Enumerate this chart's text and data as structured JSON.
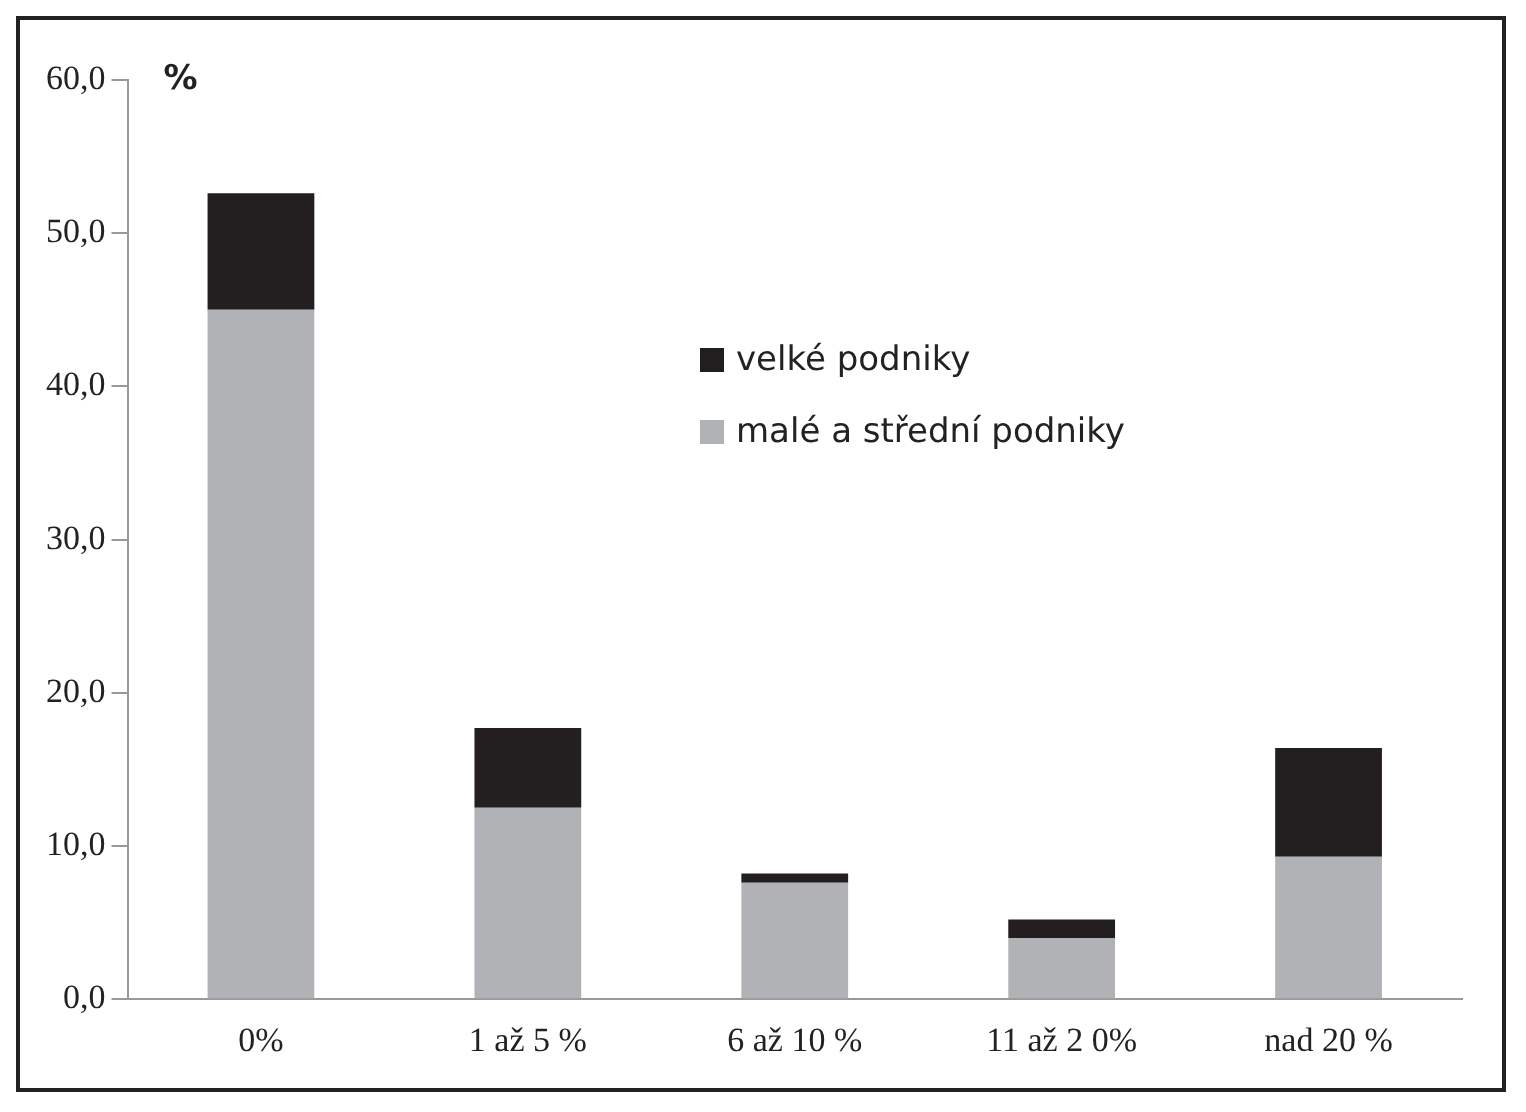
{
  "chart_data": {
    "type": "bar",
    "stacked": true,
    "ylabel": "%",
    "categories": [
      "0%",
      "1 až 5 %",
      "6 až 10 %",
      "11 až 2 0%",
      "nad 20 %"
    ],
    "series": [
      {
        "name": "malé a střední podniky",
        "color": "#b1b2b5",
        "values": [
          45.0,
          12.5,
          7.6,
          4.0,
          9.3
        ]
      },
      {
        "name": "velké podniky",
        "color": "#231f20",
        "values": [
          7.6,
          5.2,
          0.6,
          1.2,
          7.1
        ]
      }
    ],
    "ylim": [
      0,
      60
    ],
    "yticks": [
      {
        "value": 0,
        "label": "0,0"
      },
      {
        "value": 10,
        "label": "10,0"
      },
      {
        "value": 20,
        "label": "20,0"
      },
      {
        "value": 30,
        "label": "30,0"
      },
      {
        "value": 40,
        "label": "40,0"
      },
      {
        "value": 50,
        "label": "50,0"
      },
      {
        "value": 60,
        "label": "60,0"
      }
    ],
    "grid": false,
    "legend": "top"
  }
}
